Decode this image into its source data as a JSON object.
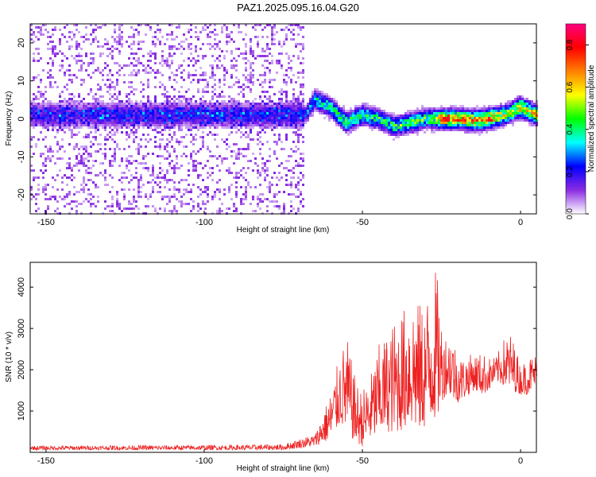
{
  "title": "PAZ1.2025.095.16.04.G20",
  "chart_data": [
    {
      "type": "heatmap",
      "title": "PAZ1.2025.095.16.04.G20",
      "xlabel": "Height of straight line (km)",
      "ylabel": "Frequency (Hz)",
      "xlim": [
        -155,
        5
      ],
      "ylim": [
        -25,
        25
      ],
      "xticks": [
        -150,
        -100,
        -50,
        0
      ],
      "yticks": [
        -20,
        -10,
        0,
        10,
        20
      ],
      "colorbar": {
        "label": "Normalized spectral amplitude",
        "range": [
          0,
          0.9
        ],
        "ticks": [
          0.0,
          0.2,
          0.4,
          0.6,
          0.8
        ],
        "colors": [
          "#ffffff",
          "#8a2be2",
          "#0000ff",
          "#00ffff",
          "#00ff00",
          "#ffff00",
          "#ff8000",
          "#ff0000",
          "#ff0080"
        ]
      },
      "ridge": {
        "x": [
          -155,
          -140,
          -120,
          -100,
          -80,
          -68,
          -65,
          -60,
          -55,
          -50,
          -45,
          -40,
          -35,
          -30,
          -27,
          -25,
          -20,
          -15,
          -10,
          -5,
          0,
          5
        ],
        "y": [
          1,
          1,
          1,
          1,
          1,
          1,
          5,
          3,
          -1,
          1,
          0,
          -2,
          -1,
          0,
          0,
          0,
          0,
          -0.5,
          0,
          1,
          3,
          1
        ],
        "amplitude": [
          0.2,
          0.2,
          0.22,
          0.22,
          0.22,
          0.25,
          0.4,
          0.45,
          0.5,
          0.5,
          0.45,
          0.45,
          0.5,
          0.5,
          0.55,
          0.8,
          0.75,
          0.75,
          0.8,
          0.6,
          0.7,
          0.6
        ]
      }
    },
    {
      "type": "line",
      "xlabel": "Height of straight line (km)",
      "ylabel": "SNR (10 * v/v)",
      "xlim": [
        -155,
        5
      ],
      "ylim": [
        0,
        4600
      ],
      "xticks": [
        -150,
        -100,
        -50,
        0
      ],
      "yticks": [
        1000,
        2000,
        3000,
        4000
      ],
      "color": "#ee2222",
      "envelope": {
        "x": [
          -155,
          -120,
          -90,
          -75,
          -65,
          -60,
          -57,
          -55,
          -52,
          -50,
          -47,
          -45,
          -42,
          -40,
          -37,
          -35,
          -32,
          -30,
          -28,
          -27,
          -26,
          -25,
          -23,
          -22,
          -20,
          -18,
          -15,
          -12,
          -10,
          -8,
          -5,
          -3,
          0,
          2,
          5
        ],
        "low": [
          60,
          60,
          60,
          60,
          150,
          300,
          700,
          500,
          200,
          150,
          300,
          400,
          500,
          450,
          550,
          650,
          500,
          600,
          700,
          800,
          900,
          1200,
          1500,
          1300,
          1200,
          1300,
          1500,
          1400,
          1500,
          1700,
          1600,
          1500,
          1400,
          1400,
          1600
        ],
        "high": [
          160,
          170,
          180,
          200,
          450,
          1500,
          2400,
          2800,
          1700,
          1500,
          2000,
          2600,
          2900,
          3200,
          3500,
          3900,
          3600,
          3700,
          4300,
          4500,
          4000,
          3100,
          2800,
          3000,
          2400,
          2300,
          2400,
          2400,
          2300,
          2300,
          2800,
          2900,
          2100,
          2300,
          2400
        ]
      }
    }
  ]
}
